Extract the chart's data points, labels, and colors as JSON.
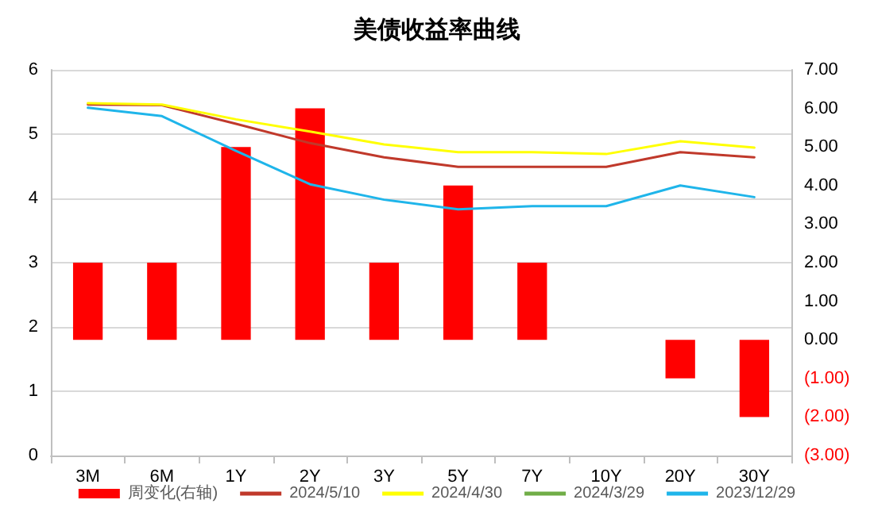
{
  "chart_data": {
    "type": "line",
    "title": "美债收益率曲线",
    "categories": [
      "3M",
      "6M",
      "1Y",
      "2Y",
      "3Y",
      "5Y",
      "7Y",
      "10Y",
      "20Y",
      "30Y"
    ],
    "series": [
      {
        "name": "周变化(右轴)",
        "type": "bar",
        "axis": "y2",
        "color": "#ff0000",
        "values": [
          2,
          2,
          5,
          6,
          2,
          4,
          2,
          0,
          -1,
          -2
        ]
      },
      {
        "name": "2024/5/10",
        "color": "#c0392b",
        "values": [
          5.46,
          5.45,
          5.16,
          4.86,
          4.64,
          4.49,
          4.49,
          4.49,
          4.72,
          4.64
        ]
      },
      {
        "name": "2024/4/30",
        "color": "#ffff00",
        "values": [
          5.48,
          5.46,
          5.23,
          5.04,
          4.84,
          4.72,
          4.72,
          4.69,
          4.89,
          4.79
        ]
      },
      {
        "name": "2024/3/29",
        "color": "#70ad47",
        "values": [
          null,
          null,
          null,
          null,
          null,
          null,
          null,
          null,
          null,
          null
        ]
      },
      {
        "name": "2023/12/29",
        "color": "#1fb5ea",
        "values": [
          5.41,
          5.28,
          4.74,
          4.22,
          3.98,
          3.83,
          3.88,
          3.88,
          4.2,
          4.02
        ]
      }
    ],
    "ylim": [
      0,
      6
    ],
    "yticks": [
      0,
      1,
      2,
      3,
      4,
      5,
      6
    ],
    "y2lim": [
      -3,
      7
    ],
    "y2ticks": [
      {
        "value": -3,
        "label": "(3.00)"
      },
      {
        "value": -2,
        "label": "(2.00)"
      },
      {
        "value": -1,
        "label": "(1.00)"
      },
      {
        "value": 0,
        "label": "0.00"
      },
      {
        "value": 1,
        "label": "1.00"
      },
      {
        "value": 2,
        "label": "2.00"
      },
      {
        "value": 3,
        "label": "3.00"
      },
      {
        "value": 4,
        "label": "4.00"
      },
      {
        "value": 5,
        "label": "5.00"
      },
      {
        "value": 6,
        "label": "6.00"
      },
      {
        "value": 7,
        "label": "7.00"
      }
    ],
    "grid": "y",
    "legend": "bottom",
    "marker": "none",
    "line_style": "solid"
  }
}
